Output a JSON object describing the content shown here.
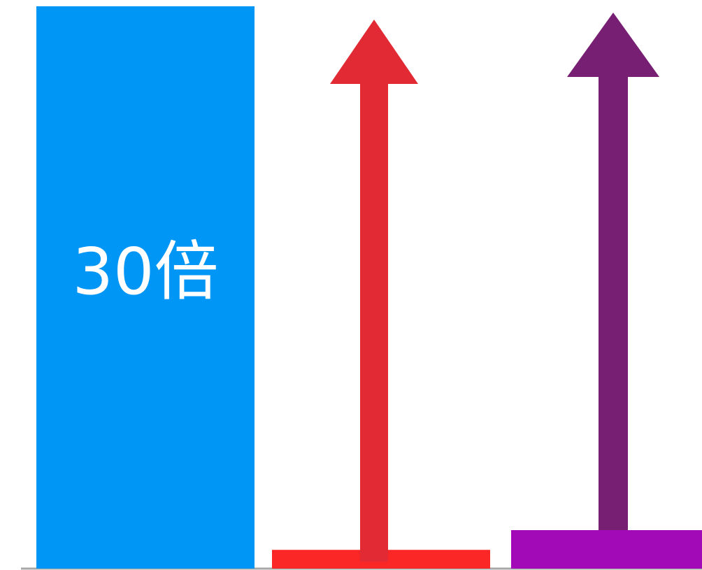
{
  "chart_data": {
    "type": "bar",
    "categories": [
      "",
      "",
      ""
    ],
    "values": [
      30,
      1,
      1
    ],
    "data_labels": [
      "30倍",
      "",
      ""
    ],
    "colors": [
      "#0096f5",
      "#fb2727",
      "#a10ab6"
    ],
    "arrows": [
      {
        "category_index": 1,
        "color": "#e12a33"
      },
      {
        "category_index": 2,
        "color": "#771f72"
      }
    ],
    "axis_color": "#a8a8a8",
    "grid": false,
    "title": "",
    "xlabel": "",
    "ylabel": ""
  }
}
